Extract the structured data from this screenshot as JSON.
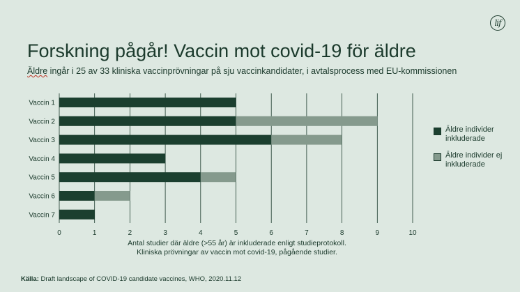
{
  "logo_text": "lif",
  "title": "Forskning pågår! Vaccin mot covid-19 för äldre",
  "subtitle_first_word": "Äldre",
  "subtitle_rest": " ingår i 25 av 33 kliniska vaccinprövningar på sju vaccinkandidater, i avtalsprocess med EU-kommissionen",
  "source_label": "Källa:",
  "source_text": " Draft landscape of COVID-19 candidate vaccines, WHO, 2020.11.12",
  "colors": {
    "included": "#1b3f2f",
    "excluded": "#859a8d",
    "grid": "#1b3a2c",
    "background": "#dde8e1"
  },
  "chart_data": {
    "type": "bar",
    "orientation": "horizontal",
    "stacked": true,
    "categories": [
      "Vaccin 1",
      "Vaccin 2",
      "Vaccin 3",
      "Vaccin 4",
      "Vaccin 5",
      "Vaccin 6",
      "Vaccin 7"
    ],
    "series": [
      {
        "name": "Äldre individer inkluderade",
        "values": [
          5,
          5,
          6,
          3,
          4,
          1,
          1
        ]
      },
      {
        "name": "Äldre individer ej inkluderade",
        "values": [
          0,
          4,
          2,
          0,
          1,
          1,
          0
        ]
      }
    ],
    "xlabel_line1": "Antal studier där äldre (>55 år) är inkluderade enligt studieprotokoll.",
    "xlabel_line2": "Kliniska prövningar av vaccin mot covid-19, pågående studier.",
    "xlim": [
      0,
      10
    ],
    "xticks": [
      "0",
      "1",
      "2",
      "3",
      "4",
      "5",
      "6",
      "7",
      "8",
      "9",
      "10"
    ],
    "grid": true,
    "legend_position": "right"
  }
}
